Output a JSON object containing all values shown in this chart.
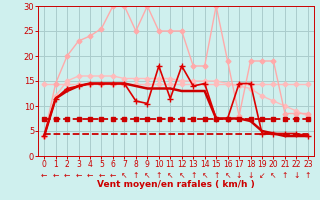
{
  "bg_color": "#cff0ee",
  "grid_color": "#aacccc",
  "xlabel": "Vent moyen/en rafales ( km/h )",
  "xlabel_color": "#cc0000",
  "tick_color": "#cc0000",
  "xlim": [
    -0.5,
    23.5
  ],
  "ylim": [
    0,
    30
  ],
  "yticks": [
    0,
    5,
    10,
    15,
    20,
    25,
    30
  ],
  "xticks": [
    0,
    1,
    2,
    3,
    4,
    5,
    6,
    7,
    8,
    9,
    10,
    11,
    12,
    13,
    14,
    15,
    16,
    17,
    18,
    19,
    20,
    21,
    22,
    23
  ],
  "series": [
    {
      "x": [
        0,
        1,
        2,
        3,
        4,
        5,
        6,
        7,
        8,
        9,
        10,
        11,
        12,
        13,
        14,
        15,
        16,
        17,
        18,
        19,
        20,
        21,
        22,
        23
      ],
      "y": [
        14.5,
        14.5,
        14.5,
        14.5,
        14.5,
        14.5,
        14.5,
        14.5,
        14.5,
        14.5,
        14.5,
        14.5,
        14.5,
        14.5,
        14.5,
        14.5,
        14.5,
        14.5,
        14.5,
        14.5,
        14.5,
        14.5,
        14.5,
        14.5
      ],
      "color": "#ffbbbb",
      "linewidth": 1.0,
      "marker": "D",
      "markersize": 2.5,
      "linestyle": "-"
    },
    {
      "x": [
        0,
        1,
        2,
        3,
        4,
        5,
        6,
        7,
        8,
        9,
        10,
        11,
        12,
        13,
        14,
        15,
        16,
        17,
        18,
        19,
        20,
        21,
        22,
        23
      ],
      "y": [
        4.0,
        12.0,
        15.0,
        16.0,
        16.0,
        16.0,
        16.0,
        15.5,
        15.5,
        15.5,
        15.5,
        15.5,
        15.0,
        15.0,
        15.0,
        15.0,
        14.5,
        14.0,
        13.5,
        12.0,
        11.0,
        10.0,
        9.0,
        8.0
      ],
      "color": "#ffbbbb",
      "linewidth": 1.0,
      "marker": "D",
      "markersize": 2.5,
      "linestyle": "-"
    },
    {
      "x": [
        0,
        1,
        2,
        3,
        4,
        5,
        6,
        7,
        8,
        9,
        10,
        11,
        12,
        13,
        14,
        15,
        16,
        17,
        18,
        19,
        20,
        21,
        22,
        23
      ],
      "y": [
        4.0,
        14.5,
        20.0,
        23.0,
        24.0,
        25.5,
        30.0,
        30.0,
        25.0,
        30.0,
        25.0,
        25.0,
        25.0,
        18.0,
        18.0,
        30.0,
        19.0,
        8.0,
        19.0,
        19.0,
        19.0,
        8.5,
        8.5,
        8.5
      ],
      "color": "#ffaaaa",
      "linewidth": 1.0,
      "marker": "D",
      "markersize": 2.5,
      "linestyle": "-"
    },
    {
      "x": [
        0,
        1,
        2,
        3,
        4,
        5,
        6,
        7,
        8,
        9,
        10,
        11,
        12,
        13,
        14,
        15,
        16,
        17,
        18,
        19,
        20,
        21,
        22,
        23
      ],
      "y": [
        4.0,
        11.5,
        13.0,
        14.0,
        14.5,
        14.5,
        14.5,
        14.5,
        14.0,
        13.5,
        13.5,
        13.5,
        13.0,
        13.0,
        13.0,
        7.5,
        7.5,
        7.5,
        7.0,
        5.0,
        4.5,
        4.0,
        4.0,
        4.0
      ],
      "color": "#cc0000",
      "linewidth": 1.8,
      "marker": null,
      "markersize": 0,
      "linestyle": "-"
    },
    {
      "x": [
        0,
        1,
        2,
        3,
        4,
        5,
        6,
        7,
        8,
        9,
        10,
        11,
        12,
        13,
        14,
        15,
        16,
        17,
        18,
        19,
        20,
        21,
        22,
        23
      ],
      "y": [
        4.0,
        11.5,
        13.5,
        14.0,
        14.5,
        14.5,
        14.5,
        14.5,
        11.0,
        10.5,
        18.0,
        11.5,
        18.0,
        14.0,
        14.5,
        7.5,
        7.5,
        14.5,
        14.5,
        4.5,
        4.5,
        4.5,
        4.5,
        4.0
      ],
      "color": "#dd0000",
      "linewidth": 1.2,
      "marker": "+",
      "markersize": 5,
      "linestyle": "-"
    },
    {
      "x": [
        0,
        1,
        2,
        3,
        4,
        5,
        6,
        7,
        8,
        9,
        10,
        11,
        12,
        13,
        14,
        15,
        16,
        17,
        18,
        19,
        20,
        21,
        22,
        23
      ],
      "y": [
        7.5,
        7.5,
        7.5,
        7.5,
        7.5,
        7.5,
        7.5,
        7.5,
        7.5,
        7.5,
        7.5,
        7.5,
        7.5,
        7.5,
        7.5,
        7.5,
        7.5,
        7.5,
        7.5,
        7.5,
        7.5,
        7.5,
        7.5,
        7.5
      ],
      "color": "#cc0000",
      "linewidth": 1.3,
      "marker": "s",
      "markersize": 2.5,
      "linestyle": "--"
    },
    {
      "x": [
        0,
        1,
        2,
        3,
        4,
        5,
        6,
        7,
        8,
        9,
        10,
        11,
        12,
        13,
        14,
        15,
        16,
        17,
        18,
        19,
        20,
        21,
        22,
        23
      ],
      "y": [
        4.5,
        4.5,
        4.5,
        4.5,
        4.5,
        4.5,
        4.5,
        4.5,
        4.5,
        4.5,
        4.5,
        4.5,
        4.5,
        4.5,
        4.5,
        4.5,
        4.5,
        4.5,
        4.5,
        4.5,
        4.5,
        4.5,
        4.5,
        4.5
      ],
      "color": "#cc0000",
      "linewidth": 1.3,
      "marker": null,
      "markersize": 0,
      "linestyle": "--"
    }
  ],
  "arrow_directions": [
    180,
    180,
    180,
    180,
    180,
    180,
    180,
    135,
    90,
    135,
    90,
    135,
    135,
    90,
    135,
    90,
    135,
    270,
    270,
    225,
    135,
    90,
    270,
    90
  ],
  "arrow_chars": {
    "0": "→",
    "45": "↗",
    "90": "↑",
    "135": "↖",
    "180": "←",
    "225": "↙",
    "270": "↓",
    "315": "↘"
  }
}
